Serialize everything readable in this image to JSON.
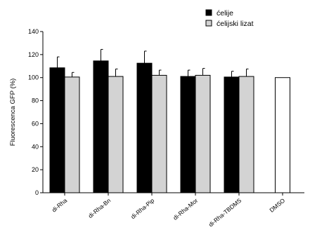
{
  "chart_data": {
    "type": "bar",
    "title": "",
    "xlabel": "",
    "ylabel": "Fluorescenca GFP (%)",
    "ylim": [
      0,
      140
    ],
    "yticks": [
      0,
      20,
      40,
      60,
      80,
      100,
      120,
      140
    ],
    "grid": false,
    "legend_position": "top-right",
    "categories": [
      "di-Rha",
      "di-Rha-Bn",
      "di-Rha-Pip",
      "di-Rha-Mor",
      "di-Rha-TBDMS",
      "DMSO"
    ],
    "series": [
      {
        "name": "ćelije",
        "color": "#000000",
        "fill": "#000000",
        "values": [
          108.5,
          114.5,
          112.5,
          101,
          100.5,
          null
        ],
        "errors": [
          9.5,
          10,
          10.5,
          5.5,
          5,
          null
        ]
      },
      {
        "name": "ćelijski lizat",
        "color": "#000000",
        "fill": "#d3d3d3",
        "values": [
          100.5,
          101,
          102,
          102,
          101,
          null
        ],
        "errors": [
          4,
          6.5,
          4.5,
          6,
          6.5,
          null
        ]
      }
    ],
    "control": {
      "category": "DMSO",
      "value": 100,
      "fill": "#ffffff"
    }
  }
}
